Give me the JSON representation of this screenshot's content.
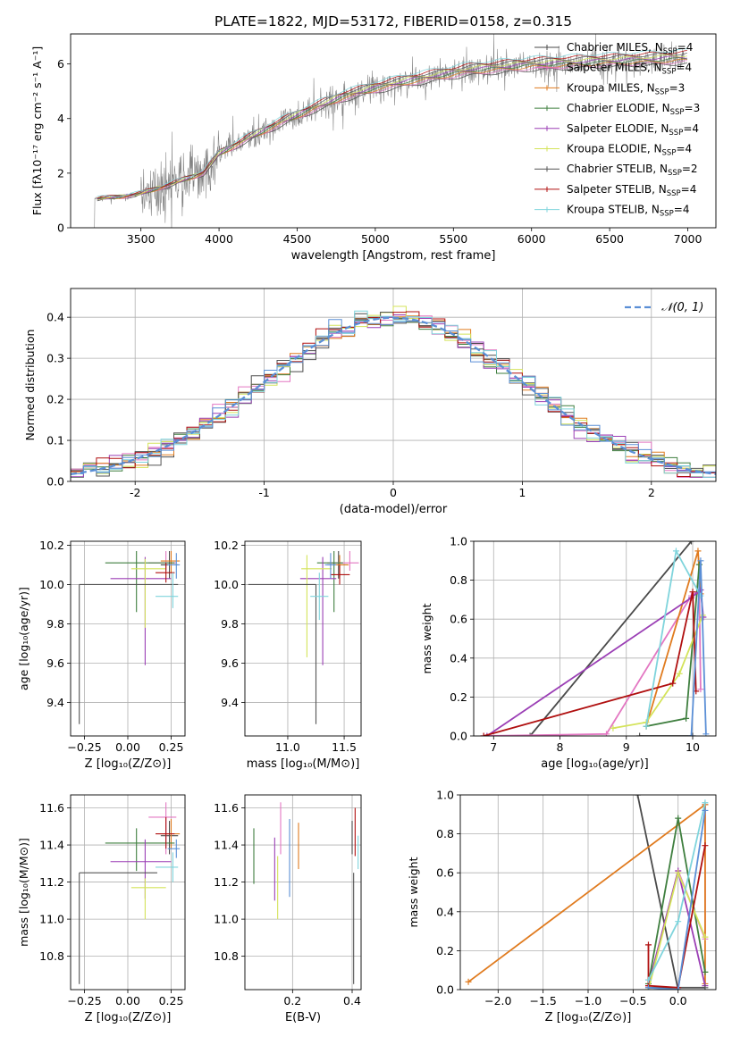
{
  "title": "PLATE=1822, MJD=53172, FIBERID=0158, z=0.315",
  "colors": {
    "Chabrier MILES": "#4a4a4a",
    "Salpeter MILES": "#e377c2",
    "Kroupa MILES": "#e07b1f",
    "Chabrier ELODIE": "#3f7f3f",
    "Salpeter ELODIE": "#9b3fb5",
    "Kroupa ELODIE": "#d4e35a",
    "Chabrier STELIB": "#555555",
    "Salpeter STELIB": "#b01010",
    "Kroupa STELIB": "#7fd4dc",
    "extra": "#5b8fd6",
    "gauss": "#5b8fd6",
    "observed": "#808080"
  },
  "chart_data": [
    {
      "id": "spectrum",
      "type": "line",
      "xlabel": "wavelength [Angstrom, rest frame]",
      "ylabel": "Flux [fλ10⁻¹⁷ erg cm⁻² s⁻¹ A⁻¹]",
      "xlim": [
        3050,
        7180
      ],
      "ylim": [
        0,
        7.1
      ],
      "xticks": [
        3500,
        4000,
        4500,
        5000,
        5500,
        6000,
        6500,
        7000
      ],
      "yticks": [
        0,
        2,
        4,
        6
      ],
      "legend_position": "top-right",
      "legend": [
        {
          "label": "Chabrier MILES, N",
          "sub": "SSP",
          "tail": "=4"
        },
        {
          "label": "Salpeter MILES, N",
          "sub": "SSP",
          "tail": "=4"
        },
        {
          "label": "Kroupa MILES, N",
          "sub": "SSP",
          "tail": "=3"
        },
        {
          "label": "Chabrier ELODIE, N",
          "sub": "SSP",
          "tail": "=3"
        },
        {
          "label": "Salpeter ELODIE, N",
          "sub": "SSP",
          "tail": "=4"
        },
        {
          "label": "Kroupa ELODIE, N",
          "sub": "SSP",
          "tail": "=4"
        },
        {
          "label": "Chabrier STELIB, N",
          "sub": "SSP",
          "tail": "=2"
        },
        {
          "label": "Salpeter STELIB, N",
          "sub": "SSP",
          "tail": "=4"
        },
        {
          "label": "Kroupa STELIB, N",
          "sub": "SSP",
          "tail": "=4"
        }
      ],
      "continuum": {
        "x": [
          3200,
          3400,
          3500,
          3700,
          3900,
          4000,
          4200,
          4400,
          4600,
          4800,
          5000,
          5200,
          5400,
          5600,
          5800,
          6000,
          6200,
          6400,
          6600,
          6800,
          7000
        ],
        "y": [
          1.05,
          1.15,
          1.25,
          1.6,
          2.0,
          2.7,
          3.3,
          3.85,
          4.35,
          4.8,
          5.1,
          5.35,
          5.55,
          5.75,
          5.85,
          5.95,
          6.0,
          6.05,
          6.1,
          6.15,
          6.2
        ]
      },
      "observed_range": [
        3200,
        6980
      ]
    },
    {
      "id": "residuals",
      "type": "bar",
      "xlabel": "(data-model)/error",
      "ylabel": "Normed distribution",
      "xlim": [
        -2.5,
        2.5
      ],
      "ylim": [
        0,
        0.47
      ],
      "xticks": [
        -2,
        -1,
        0,
        1,
        2
      ],
      "yticks": [
        0.0,
        0.1,
        0.2,
        0.3,
        0.4
      ],
      "legend": [
        "𝒩(0, 1)"
      ],
      "legend_position": "top-right",
      "bin_width": 0.1
    },
    {
      "id": "age_vs_Z",
      "type": "scatter",
      "xlabel": "Z [log₁₀(Z/Z⊙)]",
      "ylabel": "age  [log₁₀(age/yr)]",
      "xlim": [
        -0.33,
        0.33
      ],
      "ylim": [
        9.23,
        10.22
      ],
      "xticks": [
        -0.25,
        0.0,
        0.25
      ],
      "xticklabels": [
        "−0.25",
        "0.00",
        "0.25"
      ],
      "yticks": [
        9.4,
        9.6,
        9.8,
        10.0,
        10.2
      ],
      "points": [
        {
          "c": "Chabrier MILES",
          "x": 0.24,
          "y": 10.1,
          "xe": [
            -0.05,
            0.05
          ],
          "ye": [
            -0.07,
            0.07
          ]
        },
        {
          "c": "Salpeter MILES",
          "x": 0.22,
          "y": 10.11,
          "xe": [
            -0.1,
            0.06
          ],
          "ye": [
            -0.04,
            0.06
          ]
        },
        {
          "c": "Kroupa MILES",
          "x": 0.25,
          "y": 10.12,
          "xe": [
            -0.06,
            0.05
          ],
          "ye": [
            -0.06,
            0.05
          ]
        },
        {
          "c": "Chabrier ELODIE",
          "x": 0.05,
          "y": 10.11,
          "xe": [
            -0.18,
            0.22
          ],
          "ye": [
            -0.25,
            0.06
          ]
        },
        {
          "c": "Salpeter ELODIE",
          "x": 0.1,
          "y": 10.03,
          "xe": [
            -0.2,
            0.15
          ],
          "ye": [
            -0.44,
            0.11
          ]
        },
        {
          "c": "Kroupa ELODIE",
          "x": 0.1,
          "y": 10.08,
          "xe": [
            -0.08,
            0.12
          ],
          "ye": [
            -0.3,
            0.05
          ]
        },
        {
          "c": "Chabrier STELIB",
          "x": -0.28,
          "y": 10.0,
          "xe": [
            0,
            0.57
          ],
          "ye": [
            -0.71,
            0
          ]
        },
        {
          "c": "Salpeter STELIB",
          "x": 0.22,
          "y": 10.06,
          "xe": [
            -0.06,
            0.05
          ],
          "ye": [
            -0.05,
            0.05
          ]
        },
        {
          "c": "Kroupa STELIB",
          "x": 0.26,
          "y": 9.94,
          "xe": [
            -0.1,
            0.03
          ],
          "ye": [
            -0.06,
            0.12
          ]
        },
        {
          "c": "extra",
          "x": 0.28,
          "y": 10.1,
          "xe": [
            -0.05,
            0.02
          ],
          "ye": [
            -0.07,
            0.06
          ]
        }
      ]
    },
    {
      "id": "age_vs_mass",
      "type": "scatter",
      "xlabel": "mass [log₁₀(M/M⊙)]",
      "ylabel": "",
      "xlim": [
        10.62,
        11.65
      ],
      "ylim": [
        9.23,
        10.22
      ],
      "xticks": [
        11.0,
        11.5
      ],
      "xticklabels": [
        "11.0",
        "11.5"
      ],
      "yticks": [
        9.4,
        9.6,
        9.8,
        10.0,
        10.2
      ],
      "points": [
        {
          "c": "Chabrier MILES",
          "x": 11.45,
          "y": 10.1,
          "xe": [
            -0.1,
            0.08
          ],
          "ye": [
            -0.07,
            0.07
          ]
        },
        {
          "c": "Salpeter MILES",
          "x": 11.55,
          "y": 10.11,
          "xe": [
            -0.2,
            0.08
          ],
          "ye": [
            -0.04,
            0.06
          ]
        },
        {
          "c": "Kroupa MILES",
          "x": 11.46,
          "y": 10.1,
          "xe": [
            -0.08,
            0.08
          ],
          "ye": [
            -0.06,
            0.05
          ]
        },
        {
          "c": "Chabrier ELODIE",
          "x": 11.41,
          "y": 10.11,
          "xe": [
            -0.15,
            0.08
          ],
          "ye": [
            -0.25,
            0.06
          ]
        },
        {
          "c": "Salpeter ELODIE",
          "x": 11.31,
          "y": 10.03,
          "xe": [
            -0.2,
            0.12
          ],
          "ye": [
            -0.44,
            0.11
          ]
        },
        {
          "c": "Kroupa ELODIE",
          "x": 11.17,
          "y": 10.08,
          "xe": [
            -0.05,
            0.22
          ],
          "ye": [
            -0.45,
            0.07
          ]
        },
        {
          "c": "Chabrier STELIB",
          "x": 11.25,
          "y": 10.0,
          "xe": [
            -0.6,
            0
          ],
          "ye": [
            -0.71,
            0
          ]
        },
        {
          "c": "Salpeter STELIB",
          "x": 11.46,
          "y": 10.05,
          "xe": [
            -0.08,
            0.09
          ],
          "ye": [
            -0.05,
            0.05
          ]
        },
        {
          "c": "Kroupa STELIB",
          "x": 11.28,
          "y": 9.94,
          "xe": [
            -0.08,
            0.08
          ],
          "ye": [
            -0.12,
            0.12
          ]
        },
        {
          "c": "extra",
          "x": 11.38,
          "y": 10.1,
          "xe": [
            -0.05,
            0.05
          ],
          "ye": [
            -0.07,
            0.06
          ]
        }
      ]
    },
    {
      "id": "weight_vs_age",
      "type": "line",
      "xlabel": "age  [log₁₀(age/yr)]",
      "ylabel": "mass weight",
      "xlim": [
        6.7,
        10.35
      ],
      "ylim": [
        0,
        1.0
      ],
      "xticks": [
        7,
        8,
        9,
        10
      ],
      "yticks": [
        0.0,
        0.2,
        0.4,
        0.6,
        0.8,
        1.0
      ],
      "series": [
        {
          "c": "Chabrier MILES",
          "x": [
            7.55,
            9.98
          ],
          "y": [
            0.0,
            1.0
          ]
        },
        {
          "c": "Salpeter MILES",
          "x": [
            6.85,
            8.7,
            9.98,
            10.1,
            10.12
          ],
          "y": [
            0.0,
            0.01,
            0.72,
            0.75,
            0.24
          ]
        },
        {
          "c": "Kroupa MILES",
          "x": [
            9.3,
            10.08,
            10.12
          ],
          "y": [
            0.05,
            0.95,
            0.73
          ]
        },
        {
          "c": "Chabrier ELODIE",
          "x": [
            9.3,
            9.9,
            10.1
          ],
          "y": [
            0.05,
            0.09,
            0.88
          ]
        },
        {
          "c": "Salpeter ELODIE",
          "x": [
            6.9,
            9.98,
            10.12,
            10.16
          ],
          "y": [
            0.0,
            0.71,
            0.75,
            0.61
          ]
        },
        {
          "c": "Kroupa ELODIE",
          "x": [
            8.8,
            9.3,
            9.8,
            10.15
          ],
          "y": [
            0.04,
            0.07,
            0.32,
            0.62
          ]
        },
        {
          "c": "Chabrier STELIB",
          "x": [
            9.2,
            10.0
          ],
          "y": [
            0.0,
            0.0
          ]
        },
        {
          "c": "Salpeter STELIB",
          "x": [
            6.85,
            9.7,
            10.0,
            10.05
          ],
          "y": [
            0.0,
            0.27,
            0.74,
            0.23
          ]
        },
        {
          "c": "Kroupa STELIB",
          "x": [
            9.3,
            9.75,
            10.12
          ],
          "y": [
            0.05,
            0.95,
            0.72
          ]
        },
        {
          "c": "extra",
          "x": [
            9.98,
            10.12,
            10.2
          ],
          "y": [
            0.0,
            0.9,
            0.01
          ]
        }
      ]
    },
    {
      "id": "mass_vs_Z",
      "type": "scatter",
      "xlabel": "Z [log₁₀(Z/Z⊙)]",
      "ylabel": "mass [log₁₀(M/M⊙)]",
      "xlim": [
        -0.33,
        0.33
      ],
      "ylim": [
        10.62,
        11.67
      ],
      "xticks": [
        -0.25,
        0.0,
        0.25
      ],
      "xticklabels": [
        "−0.25",
        "0.00",
        "0.25"
      ],
      "yticks": [
        10.8,
        11.0,
        11.2,
        11.4,
        11.6
      ],
      "points": [
        {
          "c": "Chabrier MILES",
          "x": 0.24,
          "y": 11.45,
          "xe": [
            -0.05,
            0.05
          ],
          "ye": [
            -0.1,
            0.08
          ]
        },
        {
          "c": "Salpeter MILES",
          "x": 0.22,
          "y": 11.55,
          "xe": [
            -0.1,
            0.06
          ],
          "ye": [
            -0.2,
            0.08
          ]
        },
        {
          "c": "Kroupa MILES",
          "x": 0.25,
          "y": 11.46,
          "xe": [
            -0.06,
            0.05
          ],
          "ye": [
            -0.08,
            0.08
          ]
        },
        {
          "c": "Chabrier ELODIE",
          "x": 0.05,
          "y": 11.41,
          "xe": [
            -0.18,
            0.22
          ],
          "ye": [
            -0.15,
            0.08
          ]
        },
        {
          "c": "Salpeter ELODIE",
          "x": 0.1,
          "y": 11.31,
          "xe": [
            -0.2,
            0.15
          ],
          "ye": [
            -0.2,
            0.12
          ]
        },
        {
          "c": "Kroupa ELODIE",
          "x": 0.1,
          "y": 11.17,
          "xe": [
            -0.08,
            0.12
          ],
          "ye": [
            -0.17,
            0.05
          ]
        },
        {
          "c": "Chabrier STELIB",
          "x": -0.28,
          "y": 11.25,
          "xe": [
            0,
            0.45
          ],
          "ye": [
            -0.6,
            0
          ]
        },
        {
          "c": "Salpeter STELIB",
          "x": 0.22,
          "y": 11.46,
          "xe": [
            -0.06,
            0.05
          ],
          "ye": [
            -0.08,
            0.09
          ]
        },
        {
          "c": "Kroupa STELIB",
          "x": 0.26,
          "y": 11.28,
          "xe": [
            -0.1,
            0.03
          ],
          "ye": [
            -0.08,
            0.08
          ]
        },
        {
          "c": "extra",
          "x": 0.28,
          "y": 11.38,
          "xe": [
            -0.05,
            0.02
          ],
          "ye": [
            -0.05,
            0.05
          ]
        }
      ]
    },
    {
      "id": "mass_vs_EBV",
      "type": "scatter",
      "xlabel": "E(B-V)",
      "ylabel": "",
      "xlim": [
        0.04,
        0.43
      ],
      "ylim": [
        10.62,
        11.67
      ],
      "xticks": [
        0.2,
        0.4
      ],
      "xticklabels": [
        "0.2",
        "0.4"
      ],
      "yticks": [
        10.8,
        11.0,
        11.2,
        11.4,
        11.6
      ],
      "points": [
        {
          "c": "Chabrier MILES",
          "x": 0.4,
          "y": 11.45,
          "xe": [
            0,
            0
          ],
          "ye": [
            -0.1,
            0.08
          ]
        },
        {
          "c": "Salpeter MILES",
          "x": 0.16,
          "y": 11.55,
          "xe": [
            0,
            0
          ],
          "ye": [
            -0.2,
            0.08
          ]
        },
        {
          "c": "Kroupa MILES",
          "x": 0.22,
          "y": 11.4,
          "xe": [
            0,
            0
          ],
          "ye": [
            -0.13,
            0.12
          ]
        },
        {
          "c": "Chabrier ELODIE",
          "x": 0.07,
          "y": 11.34,
          "xe": [
            0,
            0
          ],
          "ye": [
            -0.15,
            0.15
          ]
        },
        {
          "c": "Salpeter ELODIE",
          "x": 0.14,
          "y": 11.27,
          "xe": [
            0,
            0
          ],
          "ye": [
            -0.17,
            0.17
          ]
        },
        {
          "c": "Kroupa ELODIE",
          "x": 0.15,
          "y": 11.17,
          "xe": [
            0,
            0
          ],
          "ye": [
            -0.17,
            0.17
          ]
        },
        {
          "c": "Chabrier STELIB",
          "x": 0.405,
          "y": 10.95,
          "xe": [
            0,
            0
          ],
          "ye": [
            -0.3,
            0.3
          ]
        },
        {
          "c": "Salpeter STELIB",
          "x": 0.41,
          "y": 11.47,
          "xe": [
            0,
            0
          ],
          "ye": [
            -0.13,
            0.13
          ]
        },
        {
          "c": "Kroupa STELIB",
          "x": 0.42,
          "y": 11.36,
          "xe": [
            0,
            0
          ],
          "ye": [
            -0.09,
            0.09
          ]
        },
        {
          "c": "extra",
          "x": 0.19,
          "y": 11.32,
          "xe": [
            0,
            0
          ],
          "ye": [
            -0.2,
            0.22
          ]
        }
      ]
    },
    {
      "id": "weight_vs_Z",
      "type": "line",
      "xlabel": "Z [log₁₀(Z/Z⊙)]",
      "ylabel": "mass weight",
      "xlim": [
        -2.42,
        0.42
      ],
      "ylim": [
        0,
        1.0
      ],
      "xticks": [
        -2.0,
        -1.5,
        -1.0,
        -0.5,
        0.0
      ],
      "xticklabels": [
        "−2.0",
        "−1.5",
        "−1.0",
        "−0.5",
        "0.0"
      ],
      "yticks": [
        0.0,
        0.2,
        0.4,
        0.6,
        0.8,
        1.0
      ],
      "series": [
        {
          "c": "Chabrier MILES",
          "x": [
            -0.45,
            0.0
          ],
          "y": [
            1.0,
            0.0
          ]
        },
        {
          "c": "Salpeter MILES",
          "x": [
            -0.33,
            0.0,
            0.3,
            0.3
          ],
          "y": [
            0.02,
            0.61,
            0.26,
            0.95
          ]
        },
        {
          "c": "Kroupa MILES",
          "x": [
            -2.33,
            0.3,
            0.3
          ],
          "y": [
            0.04,
            0.95,
            0.03
          ]
        },
        {
          "c": "Chabrier ELODIE",
          "x": [
            -0.33,
            0.0,
            0.3
          ],
          "y": [
            0.03,
            0.88,
            0.09
          ]
        },
        {
          "c": "Salpeter ELODIE",
          "x": [
            -0.33,
            0.0,
            0.3
          ],
          "y": [
            0.02,
            0.61,
            0.02
          ]
        },
        {
          "c": "Kroupa ELODIE",
          "x": [
            -0.33,
            0.0,
            0.3
          ],
          "y": [
            0.0,
            0.6,
            0.27
          ]
        },
        {
          "c": "Chabrier STELIB",
          "x": [
            -0.33,
            0.3
          ],
          "y": [
            0.01,
            0.01
          ]
        },
        {
          "c": "Salpeter STELIB",
          "x": [
            -0.33,
            -0.33,
            0.0,
            0.3
          ],
          "y": [
            0.23,
            0.02,
            0.01,
            0.74
          ]
        },
        {
          "c": "Kroupa STELIB",
          "x": [
            -0.33,
            0.0,
            0.3
          ],
          "y": [
            0.05,
            0.35,
            0.96
          ]
        },
        {
          "c": "extra",
          "x": [
            -0.33,
            0.0,
            0.3
          ],
          "y": [
            0.01,
            0.0,
            0.92
          ]
        }
      ]
    }
  ]
}
